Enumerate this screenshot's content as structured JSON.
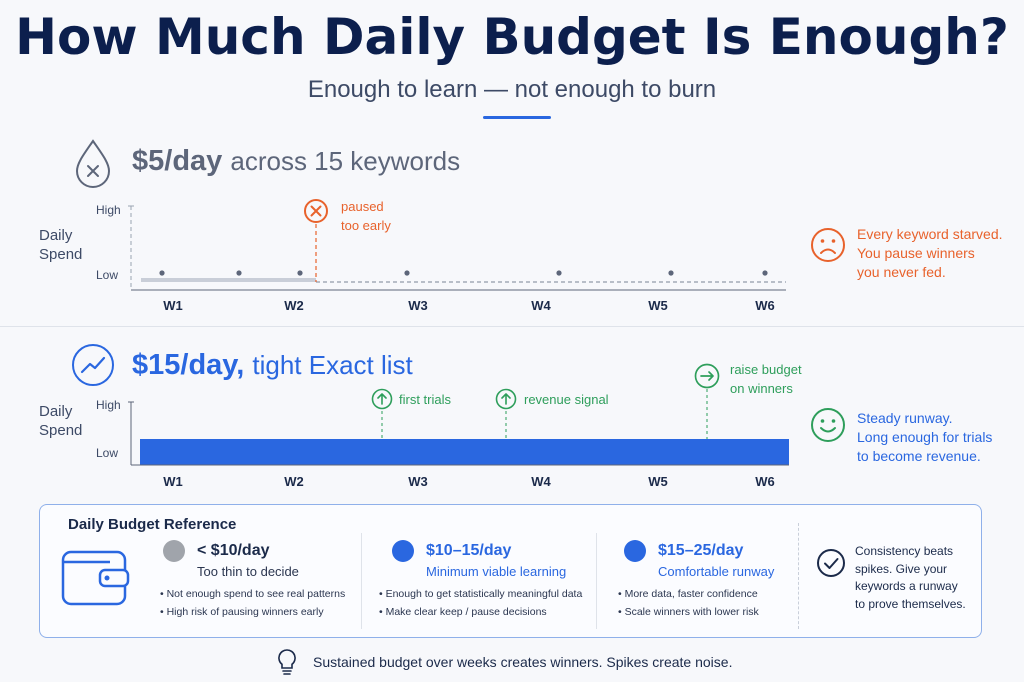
{
  "title": "How Much Daily Budget Is Enough?",
  "subtitle": "Enough to learn — not enough to burn",
  "colors": {
    "navy": "#0c1f4d",
    "blue": "#2a67e0",
    "orange": "#e8622c",
    "green": "#2e9e5b",
    "gray": "#9aa3b2"
  },
  "chart_data": [
    {
      "type": "line",
      "headline_value": "$5/day",
      "headline_rest": "across 15 keywords",
      "ylabel": "Daily\nSpend",
      "y_ticks": [
        "High",
        "Low"
      ],
      "categories": [
        "W1",
        "W2",
        "W3",
        "W4",
        "W5",
        "W6"
      ],
      "spend_level": "low",
      "paused_after": "W2",
      "annotations": [
        {
          "label": "paused\ntoo early",
          "color": "orange",
          "icon": "x-circle-icon"
        }
      ],
      "side_note": "Every keyword starved.\nYou pause winners\nyou never fed.",
      "mood": "sad-face-icon",
      "headline_icon": "droplet-x-icon"
    },
    {
      "type": "bar",
      "headline_value": "$15/day,",
      "headline_rest": "tight Exact list",
      "ylabel": "Daily\nSpend",
      "y_ticks": [
        "High",
        "Low"
      ],
      "categories": [
        "W1",
        "W2",
        "W3",
        "W4",
        "W5",
        "W6"
      ],
      "spend_level": "steady",
      "annotations": [
        {
          "label": "first trials",
          "color": "green",
          "icon": "arrow-up-circle-icon"
        },
        {
          "label": "revenue signal",
          "color": "green",
          "icon": "arrow-up-circle-icon"
        },
        {
          "label": "raise budget\non winners",
          "color": "green",
          "icon": "arrow-right-circle-icon"
        }
      ],
      "side_note": "Steady runway.\nLong enough for trials\nto become revenue.",
      "mood": "happy-face-icon",
      "headline_icon": "trend-up-circle-icon"
    }
  ],
  "reference": {
    "title": "Daily Budget Reference",
    "wallet_icon": "wallet-icon",
    "tiers": [
      {
        "title": "< $10/day",
        "subtitle": "Too thin to decide",
        "color": "#a0a4ab",
        "title_color": "#1b2a4a",
        "sub_color": "#2b3650",
        "bullets": [
          "Not enough spend to see real patterns",
          "High risk of pausing winners early"
        ]
      },
      {
        "title": "$10–15/day",
        "subtitle": "Minimum viable learning",
        "color": "#2a67e0",
        "title_color": "#2a67e0",
        "sub_color": "#2a67e0",
        "bullets": [
          "Enough to get statistically meaningful data",
          "Make clear keep / pause decisions"
        ]
      },
      {
        "title": "$15–25/day",
        "subtitle": "Comfortable runway",
        "color": "#2a67e0",
        "title_color": "#2a67e0",
        "sub_color": "#2a67e0",
        "bullets": [
          "More data, faster confidence",
          "Scale winners with lower risk"
        ]
      }
    ],
    "takeaway": "Consistency beats\nspikes. Give your\nkeywords a runway\nto prove themselves.",
    "takeaway_icon": "check-circle-icon"
  },
  "footer": {
    "text": "Sustained budget over weeks creates winners. Spikes create noise.",
    "icon": "lightbulb-icon"
  }
}
